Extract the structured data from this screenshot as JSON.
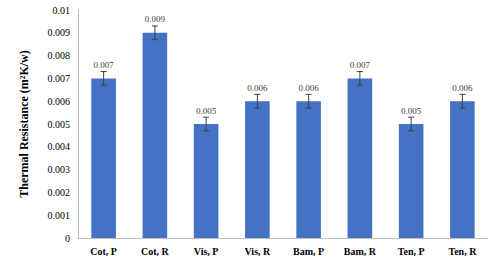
{
  "chart_data": {
    "type": "bar",
    "y_label": "Thermal Resistance (m²K/w)",
    "categories": [
      "Cot, P",
      "Cot, R",
      "Vis, P",
      "Vis, R",
      "Bam, P",
      "Bam, R",
      "Ten, P",
      "Ten, R"
    ],
    "values": [
      0.007,
      0.009,
      0.005,
      0.006,
      0.006,
      0.007,
      0.005,
      0.006
    ],
    "errors": [
      0.0003,
      0.0003,
      0.0003,
      0.0003,
      0.0003,
      0.0003,
      0.0003,
      0.0003
    ],
    "color": "#4472c4",
    "ylim": [
      0,
      0.01
    ],
    "yticks": [
      0,
      0.001,
      0.002,
      0.003,
      0.004,
      0.005,
      0.006,
      0.007,
      0.008,
      0.009,
      0.01
    ],
    "grid": false,
    "data_labels": true
  }
}
